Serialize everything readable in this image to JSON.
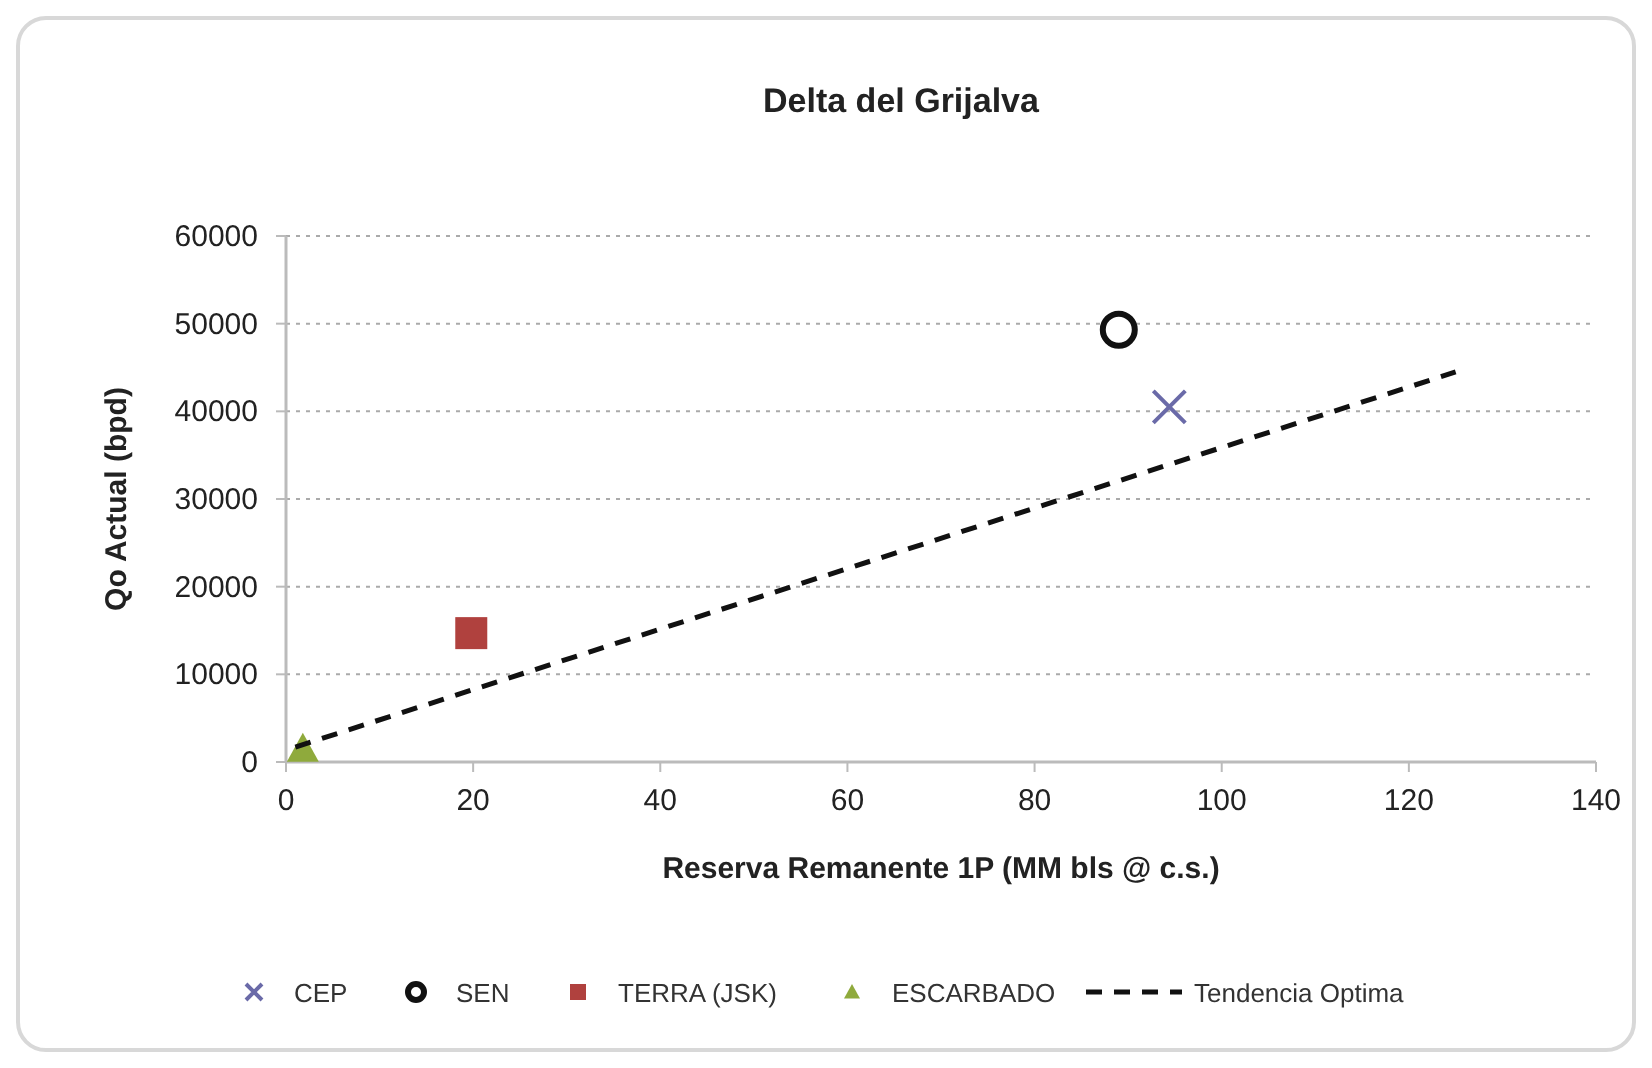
{
  "chart_data": {
    "type": "scatter",
    "title": "Delta del Grijalva",
    "xlabel": "Reserva Remanente 1P (MM bls @ c.s.)",
    "ylabel": "Qo Actual (bpd)",
    "xlim": [
      0,
      140
    ],
    "xticks": [
      0,
      20,
      40,
      60,
      80,
      100,
      120,
      140
    ],
    "ylim": [
      0,
      60000
    ],
    "yticks": [
      0,
      10000,
      20000,
      30000,
      40000,
      50000,
      60000
    ],
    "grid": "y",
    "legend": "bottom",
    "series": [
      {
        "name": "CEP",
        "color": "#6a6aa8",
        "marker": "cross",
        "x": [
          94.4
        ],
        "values": [
          40500
        ]
      },
      {
        "name": "SEN",
        "color": "#111111",
        "marker": "circle",
        "x": [
          89
        ],
        "values": [
          49300
        ]
      },
      {
        "name": "TERRA (JSK)",
        "color": "#b0413e",
        "marker": "square",
        "x": [
          19.8
        ],
        "values": [
          14700
        ]
      },
      {
        "name": "ESCARBADO",
        "color": "#8faa3c",
        "marker": "triangle",
        "x": [
          1.8
        ],
        "values": [
          1500
        ]
      },
      {
        "name": "Tendencia Optima",
        "type": "line",
        "color": "#111111",
        "line_style": "dashed",
        "marker": "none",
        "x": [
          1,
          125
        ],
        "values": [
          1700,
          44500
        ]
      }
    ]
  }
}
